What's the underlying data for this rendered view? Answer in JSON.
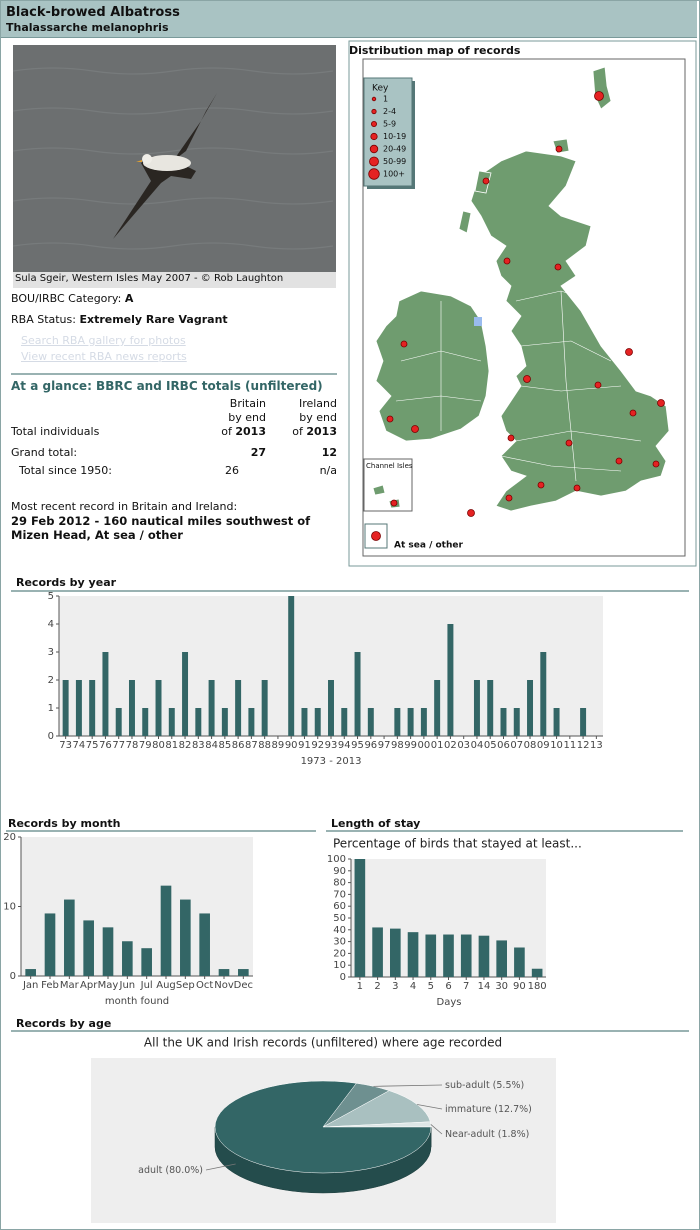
{
  "header": {
    "title": "Black-browed Albatross",
    "subtitle": "Thalassarche melanophris"
  },
  "photo": {
    "caption": "Sula Sgeir, Western Isles May 2007 - © Rob Laughton"
  },
  "info": {
    "category_label": "BOU/IRBC Category:",
    "category": "A",
    "status_label": "RBA Status:",
    "status": "Extremely Rare Vagrant",
    "links": [
      "Search RBA gallery for photos",
      "View recent RBA news reports"
    ]
  },
  "glance": {
    "title": "At a glance: BBRC and IRBC totals (unfiltered)",
    "columns": [
      {
        "lines": [
          "Britain",
          "by end"
        ],
        "of": "of",
        "year": "2013"
      },
      {
        "lines": [
          "Ireland",
          "by end"
        ],
        "of": "of",
        "year": "2013"
      }
    ],
    "rows": [
      [
        "Total individuals"
      ],
      [
        "Grand total:",
        "27",
        "12"
      ],
      [
        "Total since 1950:",
        "26",
        "n/a"
      ]
    ]
  },
  "recent": {
    "label": "Most recent record in Britain and Ireland:",
    "record": "29 Feb 2012  - 160 nautical miles southwest of Mizen Head, At sea / other"
  },
  "map": {
    "title": "Distribution map of records",
    "key_title": "Key",
    "key": [
      "1",
      "2-4",
      "5-9",
      "10-19",
      "20-49",
      "50-99",
      "100+"
    ],
    "inset": "Channel Isles",
    "at_sea": "At sea / other"
  },
  "chart_data": [
    {
      "type": "bar",
      "title": "Records by year",
      "xlabel": "1973 - 2013",
      "color": "#336666",
      "categories": [
        "73",
        "74",
        "75",
        "76",
        "77",
        "78",
        "79",
        "80",
        "81",
        "82",
        "83",
        "84",
        "85",
        "86",
        "87",
        "88",
        "89",
        "90",
        "91",
        "92",
        "93",
        "94",
        "95",
        "96",
        "97",
        "98",
        "99",
        "00",
        "01",
        "02",
        "03",
        "04",
        "05",
        "06",
        "07",
        "08",
        "09",
        "10",
        "11",
        "12",
        "13"
      ],
      "values": [
        2,
        2,
        2,
        3,
        1,
        2,
        1,
        2,
        1,
        3,
        1,
        2,
        1,
        2,
        1,
        2,
        0,
        5,
        1,
        1,
        2,
        1,
        3,
        1,
        0,
        1,
        1,
        1,
        2,
        4,
        0,
        2,
        2,
        1,
        1,
        2,
        3,
        1,
        0,
        1,
        0
      ],
      "ylim": [
        0,
        5
      ],
      "yticks": [
        0,
        1,
        2,
        3,
        4,
        5
      ]
    },
    {
      "type": "bar",
      "title": "Records by month",
      "xlabel": "month found",
      "color": "#336666",
      "categories": [
        "Jan",
        "Feb",
        "Mar",
        "Apr",
        "May",
        "Jun",
        "Jul",
        "Aug",
        "Sep",
        "Oct",
        "Nov",
        "Dec"
      ],
      "values": [
        1,
        9,
        11,
        8,
        7,
        5,
        4,
        13,
        11,
        9,
        1,
        1
      ],
      "ylim": [
        0,
        20
      ],
      "yticks": [
        0,
        10,
        20
      ]
    },
    {
      "type": "bar",
      "title": "Length of stay",
      "subtitle": "Percentage of birds that stayed at least...",
      "xlabel": "Days",
      "color": "#336666",
      "categories": [
        "1",
        "2",
        "3",
        "4",
        "5",
        "6",
        "7",
        "14",
        "30",
        "90",
        "180"
      ],
      "values": [
        100,
        42,
        41,
        38,
        36,
        36,
        36,
        35,
        31,
        25,
        7
      ],
      "ylim": [
        0,
        100
      ],
      "yticks": [
        0,
        10,
        20,
        30,
        40,
        50,
        60,
        70,
        80,
        90,
        100
      ]
    },
    {
      "type": "pie",
      "title": "Records by age",
      "subtitle": "All the UK and Irish records (unfiltered) where age recorded",
      "categories": [
        "sub-adult",
        "immature",
        "Near-adult",
        "adult"
      ],
      "values": [
        5.5,
        12.7,
        1.8,
        80.0
      ],
      "value_labels": [
        "(5.5%)",
        "(12.7%)",
        "(1.8%)",
        "(80.0%)"
      ],
      "colors": [
        "#6e9090",
        "#a9c0c0",
        "#dde6e6",
        "#336666"
      ]
    }
  ]
}
